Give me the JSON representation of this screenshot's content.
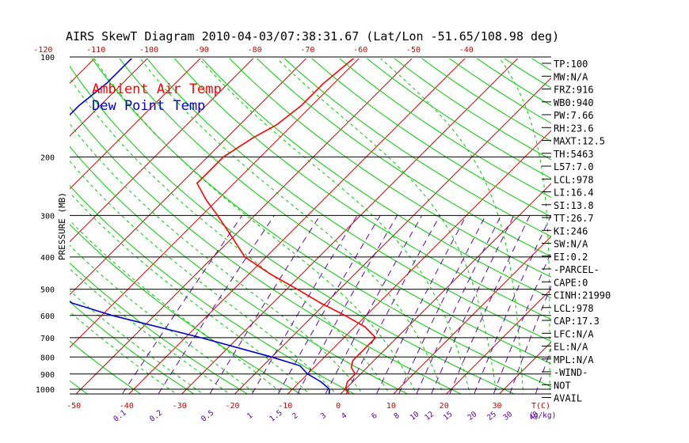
{
  "title": "AIRS SkewT Diagram 2010-04-03/07:38:31.67 (Lat/Lon -51.65/108.98 deg)",
  "legend": [
    {
      "label": "Ambient Air Temp",
      "color": "#ff0000"
    },
    {
      "label": "Dew Point Temp",
      "color": "#0000cc"
    }
  ],
  "colors": {
    "isotherm": "#cc0000",
    "dry_adiabat": "#00cc00",
    "moist_adiabat": "#00cc00",
    "mixing_ratio": "#6600aa",
    "isobar": "#000000"
  },
  "chart_data": {
    "type": "line",
    "title": "AIRS SkewT Diagram 2010-04-03/07:38:31.67 (Lat/Lon -51.65/108.98 deg)",
    "xlabel": "T(C)",
    "ylabel": "PRESSURE (MB)",
    "y_scale": "log",
    "ylim": [
      1050,
      100
    ],
    "pressure_ticks": [
      100,
      200,
      300,
      400,
      500,
      600,
      700,
      800,
      900,
      1000
    ],
    "temp_ticks_top": [
      -120,
      -110,
      -100,
      -90,
      -80,
      -70,
      -60,
      -50,
      -40
    ],
    "temp_ticks_bottom": [
      -50,
      -40,
      -30,
      -20,
      -10,
      0,
      10,
      20,
      30
    ],
    "temp_unit_label": "T(C)",
    "mixing_ratio_labels": [
      "0.1",
      "0.2",
      "0.5",
      "1",
      "1.5",
      "2",
      "3",
      "4",
      "6",
      "8",
      "10",
      "12",
      "15",
      "20",
      "25",
      "30",
      "40"
    ],
    "mixing_ratio_unit": "(g/kg)",
    "series": [
      {
        "name": "Ambient Air Temp",
        "color": "#ff0000",
        "points": [
          [
            100,
            -61
          ],
          [
            120,
            -62
          ],
          [
            140,
            -62
          ],
          [
            160,
            -63
          ],
          [
            175,
            -65
          ],
          [
            200,
            -67
          ],
          [
            240,
            -67
          ],
          [
            270,
            -62
          ],
          [
            300,
            -57
          ],
          [
            350,
            -50
          ],
          [
            400,
            -44
          ],
          [
            450,
            -36
          ],
          [
            500,
            -28
          ],
          [
            550,
            -21
          ],
          [
            600,
            -14
          ],
          [
            650,
            -8
          ],
          [
            700,
            -4
          ],
          [
            760,
            -4
          ],
          [
            820,
            -4
          ],
          [
            860,
            -3
          ],
          [
            900,
            -1
          ],
          [
            950,
            -1
          ],
          [
            1000,
            0
          ],
          [
            1040,
            2
          ]
        ]
      },
      {
        "name": "Dew Point Temp",
        "color": "#0000cc",
        "points": [
          [
            100,
            -103
          ],
          [
            120,
            -103
          ],
          [
            140,
            -104
          ],
          [
            160,
            -104
          ],
          [
            200,
            -105
          ],
          [
            250,
            -101
          ],
          [
            300,
            -94
          ],
          [
            350,
            -88
          ],
          [
            400,
            -83
          ],
          [
            450,
            -79
          ],
          [
            500,
            -74
          ],
          [
            550,
            -68
          ],
          [
            600,
            -58
          ],
          [
            700,
            -37
          ],
          [
            800,
            -20
          ],
          [
            850,
            -13
          ],
          [
            900,
            -10
          ],
          [
            950,
            -6
          ],
          [
            1000,
            -3
          ],
          [
            1040,
            -2
          ]
        ]
      }
    ]
  },
  "indices": [
    "TP:100",
    "MW:N/A",
    "FRZ:916",
    "WB0:940",
    "PW:7.66",
    "RH:23.6",
    "MAXT:12.5",
    "TH:5463",
    "L57:7.0",
    "LCL:978",
    "LI:16.4",
    "SI:13.8",
    "TT:26.7",
    "KI:246",
    "SW:N/A",
    "EI:0.2",
    "-PARCEL-",
    "CAPE:0",
    "CINH:21990",
    "LCL:978",
    "CAP:17.3",
    "LFC:N/A",
    "EL:N/A",
    "MPL:N/A",
    "-WIND-",
    "NOT",
    "AVAIL"
  ]
}
